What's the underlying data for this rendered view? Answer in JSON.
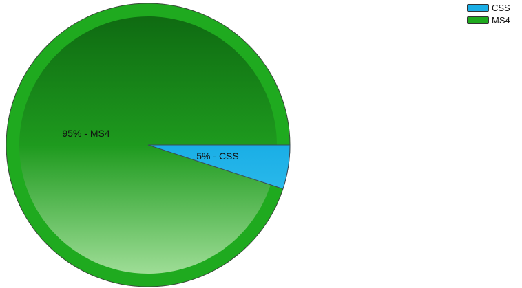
{
  "chart_data": {
    "type": "pie",
    "slices": [
      {
        "label": "MS4",
        "value": 95,
        "color": "#1faa1f",
        "display": "95% - MS4"
      },
      {
        "label": "CSS",
        "value": 5,
        "color": "#1aaee6",
        "display": "5% - CSS"
      }
    ],
    "legend": {
      "placement": "top-right",
      "entries": [
        {
          "label": "CSS",
          "color": "#1aaee6"
        },
        {
          "label": "MS4",
          "color": "#1faa1f"
        }
      ]
    }
  }
}
